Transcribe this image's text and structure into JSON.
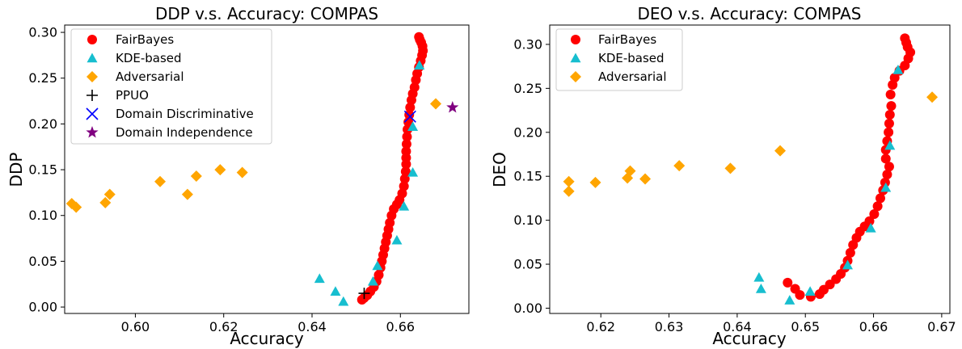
{
  "colors": {
    "FairBayes": "#ff0000",
    "KDE-based": "#17becf",
    "Adversarial": "#ffa500",
    "PPUO": "#000000",
    "Domain Discriminative": "#0000ff",
    "Domain Independence": "#800080"
  },
  "markers": {
    "FairBayes": "circle",
    "KDE-based": "triangle",
    "Adversarial": "diamond",
    "PPUO": "plus",
    "Domain Discriminative": "x",
    "Domain Independence": "star"
  },
  "chart_data": [
    {
      "type": "scatter",
      "title": "DDP v.s. Accuracy: COMPAS",
      "xlabel": "Accuracy",
      "ylabel": "DDP",
      "xlim": [
        0.584,
        0.6755
      ],
      "ylim": [
        -0.007,
        0.308
      ],
      "xticks": [
        "0.60",
        "0.62",
        "0.64",
        "0.66"
      ],
      "xtick_values": [
        0.6,
        0.62,
        0.64,
        0.66
      ],
      "yticks": [
        "0.00",
        "0.05",
        "0.10",
        "0.15",
        "0.20",
        "0.25",
        "0.30"
      ],
      "ytick_values": [
        0.0,
        0.05,
        0.1,
        0.15,
        0.2,
        0.25,
        0.3
      ],
      "grid": false,
      "legend_position": "top-left",
      "series": [
        {
          "name": "FairBayes",
          "points": [
            [
              0.6513,
              0.008
            ],
            [
              0.6518,
              0.01
            ],
            [
              0.6525,
              0.013
            ],
            [
              0.6532,
              0.017
            ],
            [
              0.654,
              0.022
            ],
            [
              0.6546,
              0.028
            ],
            [
              0.6551,
              0.035
            ],
            [
              0.6555,
              0.043
            ],
            [
              0.6558,
              0.05
            ],
            [
              0.6561,
              0.057
            ],
            [
              0.6564,
              0.064
            ],
            [
              0.6567,
              0.071
            ],
            [
              0.657,
              0.078
            ],
            [
              0.6573,
              0.085
            ],
            [
              0.6576,
              0.092
            ],
            [
              0.658,
              0.1
            ],
            [
              0.6585,
              0.107
            ],
            [
              0.6592,
              0.112
            ],
            [
              0.6598,
              0.117
            ],
            [
              0.6604,
              0.124
            ],
            [
              0.6608,
              0.132
            ],
            [
              0.661,
              0.14
            ],
            [
              0.6612,
              0.148
            ],
            [
              0.6613,
              0.156
            ],
            [
              0.6613,
              0.163
            ],
            [
              0.6613,
              0.17
            ],
            [
              0.6614,
              0.178
            ],
            [
              0.6615,
              0.186
            ],
            [
              0.6616,
              0.194
            ],
            [
              0.6618,
              0.202
            ],
            [
              0.662,
              0.21
            ],
            [
              0.6622,
              0.218
            ],
            [
              0.6625,
              0.226
            ],
            [
              0.6628,
              0.233
            ],
            [
              0.6632,
              0.24
            ],
            [
              0.6635,
              0.248
            ],
            [
              0.6638,
              0.255
            ],
            [
              0.6642,
              0.262
            ],
            [
              0.6646,
              0.269
            ],
            [
              0.6649,
              0.275
            ],
            [
              0.6651,
              0.28
            ],
            [
              0.665,
              0.285
            ],
            [
              0.6647,
              0.289
            ],
            [
              0.6644,
              0.292
            ],
            [
              0.6642,
              0.295
            ]
          ]
        },
        {
          "name": "KDE-based",
          "points": [
            [
              0.6417,
              0.031
            ],
            [
              0.6453,
              0.017
            ],
            [
              0.6471,
              0.006
            ],
            [
              0.6538,
              0.028
            ],
            [
              0.6548,
              0.045
            ],
            [
              0.6592,
              0.073
            ],
            [
              0.6608,
              0.11
            ],
            [
              0.6628,
              0.147
            ],
            [
              0.6628,
              0.197
            ],
            [
              0.6643,
              0.264
            ]
          ]
        },
        {
          "name": "Adversarial",
          "points": [
            [
              0.5856,
              0.113
            ],
            [
              0.5866,
              0.109
            ],
            [
              0.5932,
              0.114
            ],
            [
              0.5942,
              0.123
            ],
            [
              0.6056,
              0.137
            ],
            [
              0.6118,
              0.123
            ],
            [
              0.6138,
              0.143
            ],
            [
              0.6192,
              0.15
            ],
            [
              0.6242,
              0.147
            ],
            [
              0.668,
              0.222
            ]
          ]
        },
        {
          "name": "PPUO",
          "points": [
            [
              0.6518,
              0.015
            ]
          ]
        },
        {
          "name": "Domain Discriminative",
          "points": [
            [
              0.6622,
              0.208
            ]
          ]
        },
        {
          "name": "Domain Independence",
          "points": [
            [
              0.6718,
              0.218
            ]
          ]
        }
      ]
    },
    {
      "type": "scatter",
      "title": "DEO v.s. Accuracy: COMPAS",
      "xlabel": "Accuracy",
      "ylabel": "DEO",
      "xlim": [
        0.6125,
        0.6712
      ],
      "ylim": [
        -0.006,
        0.322
      ],
      "xticks": [
        "0.62",
        "0.63",
        "0.64",
        "0.65",
        "0.66",
        "0.67"
      ],
      "xtick_values": [
        0.62,
        0.63,
        0.64,
        0.65,
        0.66,
        0.67
      ],
      "yticks": [
        "0.00",
        "0.05",
        "0.10",
        "0.15",
        "0.20",
        "0.25",
        "0.30"
      ],
      "ytick_values": [
        0.0,
        0.05,
        0.1,
        0.15,
        0.2,
        0.25,
        0.3
      ],
      "grid": false,
      "legend_position": "top-left",
      "series": [
        {
          "name": "FairBayes",
          "points": [
            [
              0.6474,
              0.029
            ],
            [
              0.6485,
              0.022
            ],
            [
              0.6492,
              0.015
            ],
            [
              0.6508,
              0.013
            ],
            [
              0.6521,
              0.016
            ],
            [
              0.6527,
              0.021
            ],
            [
              0.6536,
              0.027
            ],
            [
              0.6545,
              0.033
            ],
            [
              0.6552,
              0.039
            ],
            [
              0.6558,
              0.046
            ],
            [
              0.6562,
              0.054
            ],
            [
              0.6566,
              0.063
            ],
            [
              0.657,
              0.072
            ],
            [
              0.6575,
              0.08
            ],
            [
              0.658,
              0.087
            ],
            [
              0.6587,
              0.093
            ],
            [
              0.6594,
              0.099
            ],
            [
              0.6601,
              0.107
            ],
            [
              0.6606,
              0.116
            ],
            [
              0.661,
              0.125
            ],
            [
              0.6614,
              0.134
            ],
            [
              0.6617,
              0.143
            ],
            [
              0.662,
              0.152
            ],
            [
              0.6623,
              0.161
            ],
            [
              0.6618,
              0.17
            ],
            [
              0.6618,
              0.18
            ],
            [
              0.662,
              0.19
            ],
            [
              0.6622,
              0.2
            ],
            [
              0.6623,
              0.21
            ],
            [
              0.6624,
              0.22
            ],
            [
              0.6626,
              0.23
            ],
            [
              0.6625,
              0.243
            ],
            [
              0.6628,
              0.254
            ],
            [
              0.6631,
              0.262
            ],
            [
              0.6638,
              0.27
            ],
            [
              0.6646,
              0.276
            ],
            [
              0.6651,
              0.284
            ],
            [
              0.6654,
              0.291
            ],
            [
              0.665,
              0.297
            ],
            [
              0.6648,
              0.302
            ],
            [
              0.6646,
              0.307
            ]
          ]
        },
        {
          "name": "KDE-based",
          "points": [
            [
              0.6432,
              0.035
            ],
            [
              0.6435,
              0.022
            ],
            [
              0.6477,
              0.009
            ],
            [
              0.6507,
              0.019
            ],
            [
              0.6562,
              0.049
            ],
            [
              0.6596,
              0.091
            ],
            [
              0.6618,
              0.137
            ],
            [
              0.6624,
              0.185
            ],
            [
              0.6636,
              0.271
            ]
          ]
        },
        {
          "name": "Adversarial",
          "points": [
            [
              0.6153,
              0.144
            ],
            [
              0.6153,
              0.133
            ],
            [
              0.6192,
              0.143
            ],
            [
              0.6239,
              0.148
            ],
            [
              0.6243,
              0.156
            ],
            [
              0.6265,
              0.147
            ],
            [
              0.6315,
              0.162
            ],
            [
              0.639,
              0.159
            ],
            [
              0.6463,
              0.179
            ],
            [
              0.6686,
              0.24
            ]
          ]
        }
      ]
    }
  ]
}
